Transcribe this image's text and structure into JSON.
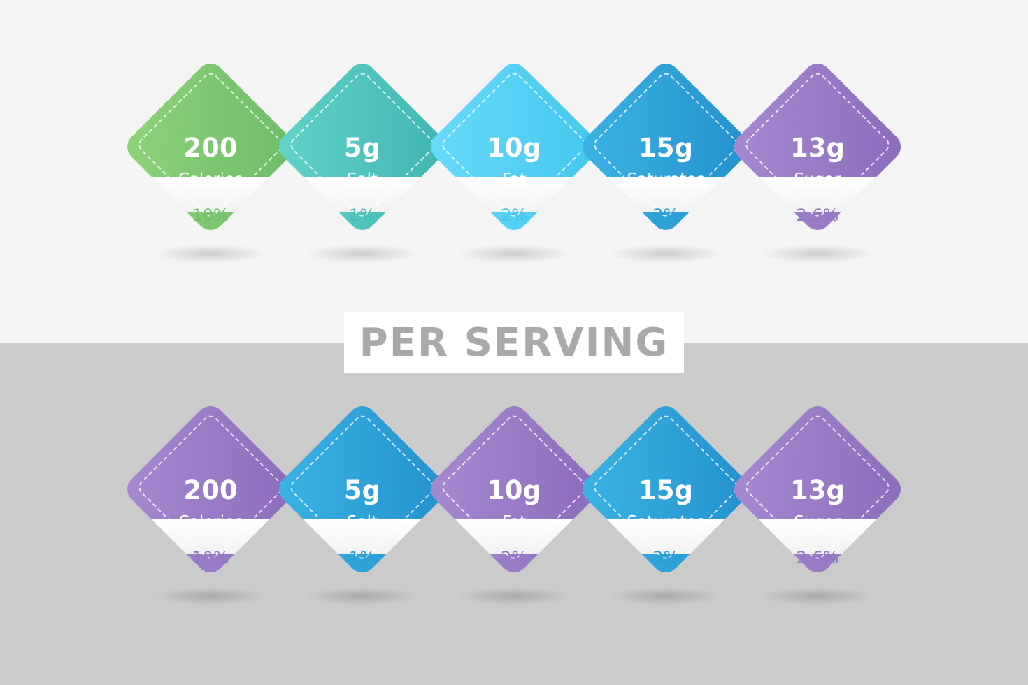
{
  "colors": {
    "green": "#6dbb68",
    "teal": "#3fb4b0",
    "sky": "#43c6ee",
    "blue": "#2290cc",
    "purple": "#8b6bbb",
    "banner_text": "#a9a9a9"
  },
  "banner": {
    "text": "PER SERVING"
  },
  "top_row": [
    {
      "amount": "200",
      "label": "Calories",
      "percent": "10%",
      "color": "green"
    },
    {
      "amount": "5g",
      "label": "Salt",
      "percent": "1%",
      "color": "teal"
    },
    {
      "amount": "10g",
      "label": "Fat",
      "percent": "2%",
      "color": "sky"
    },
    {
      "amount": "15g",
      "label": "Saturates",
      "percent": "3%",
      "color": "blue"
    },
    {
      "amount": "13g",
      "label": "Sugar",
      "percent": "2,6%",
      "color": "purple"
    }
  ],
  "bottom_row": [
    {
      "amount": "200",
      "label": "Calories",
      "percent": "10%",
      "color": "purple"
    },
    {
      "amount": "5g",
      "label": "Salt",
      "percent": "1%",
      "color": "blue"
    },
    {
      "amount": "10g",
      "label": "Fat",
      "percent": "2%",
      "color": "purple"
    },
    {
      "amount": "15g",
      "label": "Saturates",
      "percent": "3%",
      "color": "blue"
    },
    {
      "amount": "13g",
      "label": "Sugar",
      "percent": "2,6%",
      "color": "purple"
    }
  ]
}
